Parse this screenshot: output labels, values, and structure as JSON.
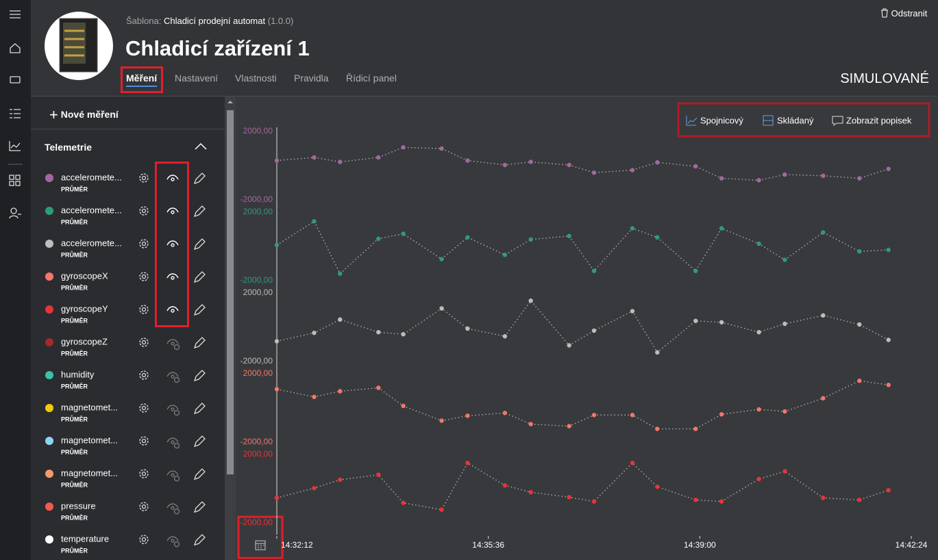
{
  "header": {
    "template_label": "Šablona:",
    "template_name": "Chladicí prodejní automat",
    "template_version": "(1.0.0)",
    "title": "Chladicí zařízení 1",
    "delete": "Odstranit",
    "status": "SIMULOVANÉ",
    "tabs": [
      "Měření",
      "Nastavení",
      "Vlastnosti",
      "Pravidla",
      "Řídicí panel"
    ]
  },
  "sidebar": {
    "new_measurement": "Nové měření",
    "section": "Telemetrie",
    "items": [
      {
        "name": "acceleromete...",
        "aggregate": "PRŮMĚR",
        "color": "#a4679e",
        "visible": true
      },
      {
        "name": "acceleromete...",
        "aggregate": "PRŮMĚR",
        "color": "#2e9c7a",
        "visible": true
      },
      {
        "name": "acceleromete...",
        "aggregate": "PRŮMĚR",
        "color": "#bdbdbd",
        "visible": true
      },
      {
        "name": "gyroscopeX",
        "aggregate": "PRŮMĚR",
        "color": "#f4766b",
        "visible": true
      },
      {
        "name": "gyroscopeY",
        "aggregate": "PRŮMĚR",
        "color": "#e8333c",
        "visible": true
      },
      {
        "name": "gyroscopeZ",
        "aggregate": "PRŮMĚR",
        "color": "#a32a2a",
        "visible": false
      },
      {
        "name": "humidity",
        "aggregate": "PRŮMĚR",
        "color": "#3dbfa8",
        "visible": false
      },
      {
        "name": "magnetomet...",
        "aggregate": "PRŮMĚR",
        "color": "#f2c811",
        "visible": false
      },
      {
        "name": "magnetomet...",
        "aggregate": "PRŮMĚR",
        "color": "#8fd3f4",
        "visible": false
      },
      {
        "name": "magnetomet...",
        "aggregate": "PRŮMĚR",
        "color": "#f59a6b",
        "visible": false
      },
      {
        "name": "pressure",
        "aggregate": "PRŮMĚR",
        "color": "#ef5a50",
        "visible": false
      },
      {
        "name": "temperature",
        "aggregate": "PRŮMĚR",
        "color": "#ffffff",
        "visible": false
      }
    ]
  },
  "toolbar": [
    "Spojnicový",
    "Skládaný",
    "Zobrazit popisek"
  ],
  "chart_data": [
    {
      "type": "line",
      "color": "#a4679e",
      "x": [
        "14:32:12",
        "14:32:48",
        "14:33:13",
        "14:33:50",
        "14:34:14",
        "14:34:51",
        "14:35:16",
        "14:35:52",
        "14:36:17",
        "14:36:54",
        "14:37:18",
        "14:37:55",
        "14:38:19",
        "14:38:56",
        "14:39:21",
        "14:39:57",
        "14:40:22",
        "14:40:59",
        "14:41:34",
        "14:42:02"
      ],
      "values": [
        300,
        480,
        220,
        480,
        1070,
        1000,
        300,
        40,
        220,
        40,
        -410,
        -260,
        190,
        -40,
        -740,
        -850,
        -520,
        -590,
        -740,
        -190
      ],
      "ylim": [
        -2000,
        2000
      ],
      "yticks": [
        {
          "value": 2000,
          "label": "2000,00"
        },
        {
          "value": -2000,
          "label": "-2000,00"
        }
      ]
    },
    {
      "type": "line",
      "color": "#2e9c7a",
      "x": [
        "14:32:12",
        "14:32:48",
        "14:33:13",
        "14:33:50",
        "14:34:14",
        "14:34:51",
        "14:35:16",
        "14:35:52",
        "14:36:17",
        "14:36:54",
        "14:37:18",
        "14:37:55",
        "14:38:19",
        "14:38:56",
        "14:39:21",
        "14:39:57",
        "14:40:22",
        "14:40:59",
        "14:41:34",
        "14:42:02"
      ],
      "values": [
        80,
        1470,
        -1590,
        450,
        740,
        -740,
        530,
        -490,
        410,
        610,
        -1430,
        1060,
        530,
        -1430,
        1060,
        160,
        -780,
        820,
        -290,
        -200
      ],
      "ylim": [
        -2000,
        2000
      ],
      "yticks": [
        {
          "value": 2000,
          "label": "2000,00"
        },
        {
          "value": -2000,
          "label": "-2000,00"
        }
      ]
    },
    {
      "type": "line",
      "color": "#bdbdbd",
      "x": [
        "14:32:12",
        "14:32:48",
        "14:33:13",
        "14:33:50",
        "14:34:14",
        "14:34:51",
        "14:35:16",
        "14:35:52",
        "14:36:17",
        "14:36:54",
        "14:37:18",
        "14:37:55",
        "14:38:19",
        "14:38:56",
        "14:39:21",
        "14:39:57",
        "14:40:22",
        "14:40:59",
        "14:41:34",
        "14:42:02"
      ],
      "values": [
        -820,
        -330,
        450,
        -290,
        -410,
        1100,
        -80,
        -530,
        1550,
        -1060,
        -200,
        940,
        -1470,
        370,
        290,
        -290,
        200,
        690,
        160,
        -740
      ],
      "ylim": [
        -2000,
        2000
      ],
      "yticks": [
        {
          "value": 2000,
          "label": "2000,00"
        },
        {
          "value": -2000,
          "label": "-2000,00"
        }
      ]
    },
    {
      "type": "line",
      "color": "#f4766b",
      "x": [
        "14:32:12",
        "14:32:48",
        "14:33:13",
        "14:33:50",
        "14:34:14",
        "14:34:51",
        "14:35:16",
        "14:35:52",
        "14:36:17",
        "14:36:54",
        "14:37:18",
        "14:37:55",
        "14:38:19",
        "14:38:56",
        "14:39:21",
        "14:39:57",
        "14:40:22",
        "14:40:59",
        "14:41:34",
        "14:42:02"
      ],
      "values": [
        1100,
        650,
        980,
        1180,
        120,
        -740,
        -450,
        -290,
        -940,
        -1060,
        -410,
        -410,
        -1220,
        -1220,
        -370,
        -80,
        -200,
        570,
        1590,
        1350
      ],
      "ylim": [
        -2000,
        2000
      ],
      "yticks": [
        {
          "value": 2000,
          "label": "2000,00"
        },
        {
          "value": -2000,
          "label": "-2000,00"
        }
      ]
    },
    {
      "type": "line",
      "color": "#e8333c",
      "x": [
        "14:32:12",
        "14:32:48",
        "14:33:13",
        "14:33:50",
        "14:34:14",
        "14:34:51",
        "14:35:16",
        "14:35:52",
        "14:36:17",
        "14:36:54",
        "14:37:18",
        "14:37:55",
        "14:38:19",
        "14:38:56",
        "14:39:21",
        "14:39:57",
        "14:40:22",
        "14:40:59",
        "14:41:34",
        "14:42:02"
      ],
      "values": [
        -530,
        40,
        530,
        820,
        -820,
        -1220,
        1510,
        200,
        -200,
        -490,
        -740,
        1510,
        120,
        -650,
        -740,
        570,
        1020,
        -530,
        -650,
        -80
      ],
      "ylim": [
        -2000,
        2000
      ],
      "yticks": [
        {
          "value": 2000,
          "label": "2000,00"
        },
        {
          "value": -2000,
          "label": "-2000,00"
        }
      ],
      "xlim": [
        "14:32:12",
        "14:42:24"
      ],
      "xticks": [
        "14:32:12",
        "14:35:36",
        "14:39:00",
        "14:42:24"
      ]
    }
  ]
}
